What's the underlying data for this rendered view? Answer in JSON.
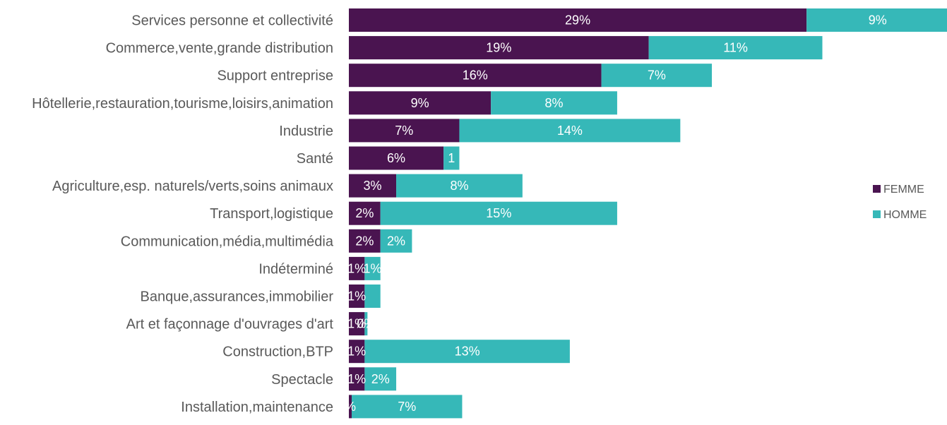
{
  "chart_data": {
    "type": "bar",
    "orientation": "horizontal",
    "stacked": true,
    "title": "",
    "xlabel": "",
    "ylabel": "",
    "grid": false,
    "legend_position": "right",
    "categories": [
      "Services personne et collectivité",
      "Commerce,vente,grande distribution",
      "Support entreprise",
      "Hôtellerie,restauration,tourisme,loisirs,animation",
      "Industrie",
      "Santé",
      "Agriculture,esp. naturels/verts,soins animaux",
      "Transport,logistique",
      "Communication,média,multimédia",
      "Indéterminé",
      "Banque,assurances,immobilier",
      "Art et façonnage d'ouvrages d'art",
      "Construction,BTP",
      "Spectacle",
      "Installation,maintenance"
    ],
    "series": [
      {
        "name": "FEMME",
        "color": "#4a1450",
        "values": [
          29,
          19,
          16,
          9,
          7,
          6,
          3,
          2,
          2,
          1,
          1,
          1,
          1,
          1,
          0
        ],
        "labels": [
          "29%",
          "19%",
          "16%",
          "9%",
          "7%",
          "6%",
          "3%",
          "2%",
          "2%",
          "1%",
          "1%",
          "1%",
          "1%",
          "1%",
          "%"
        ]
      },
      {
        "name": "HOMME",
        "color": "#36b8b8",
        "values": [
          9,
          11,
          7,
          8,
          14,
          1,
          8,
          15,
          2,
          1,
          1,
          0,
          13,
          2,
          7
        ],
        "labels": [
          "9%",
          "11%",
          "7%",
          "8%",
          "14%",
          "1",
          "8%",
          "15%",
          "2%",
          "1%",
          "",
          "0%",
          "13%",
          "2%",
          "7%"
        ]
      }
    ]
  },
  "legend": {
    "items": [
      {
        "label": "FEMME",
        "color": "#4a1450"
      },
      {
        "label": "HOMME",
        "color": "#36b8b8"
      }
    ]
  }
}
